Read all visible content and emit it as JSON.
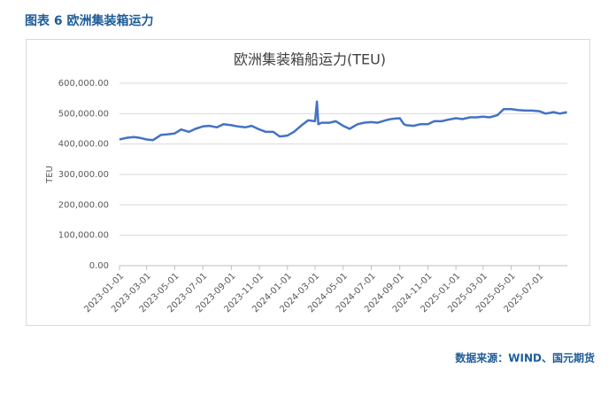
{
  "header": {
    "title": "图表 6 欧洲集装箱运力"
  },
  "source": "数据来源：WIND、国元期货",
  "chart_data": {
    "type": "line",
    "title": "欧洲集装箱船运力(TEU)",
    "y_label": "TEU",
    "x": [
      "2023-01-01",
      "2023-01-15",
      "2023-02-01",
      "2023-02-15",
      "2023-03-01",
      "2023-03-15",
      "2023-04-01",
      "2023-04-15",
      "2023-05-01",
      "2023-05-15",
      "2023-06-01",
      "2023-06-15",
      "2023-07-01",
      "2023-07-15",
      "2023-08-01",
      "2023-08-15",
      "2023-09-01",
      "2023-09-15",
      "2023-10-01",
      "2023-10-15",
      "2023-11-01",
      "2023-11-15",
      "2023-12-01",
      "2023-12-15",
      "2024-01-01",
      "2024-01-15",
      "2024-02-01",
      "2024-02-15",
      "2024-03-01",
      "2024-03-05",
      "2024-03-08",
      "2024-03-15",
      "2024-04-01",
      "2024-04-15",
      "2024-05-01",
      "2024-05-15",
      "2024-06-01",
      "2024-06-15",
      "2024-07-01",
      "2024-07-15",
      "2024-08-01",
      "2024-08-15",
      "2024-09-01",
      "2024-09-10",
      "2024-09-15",
      "2024-10-01",
      "2024-10-15",
      "2024-11-01",
      "2024-11-15",
      "2024-12-01",
      "2024-12-15",
      "2025-01-01",
      "2025-01-15",
      "2025-02-01",
      "2025-02-15",
      "2025-03-01",
      "2025-03-15",
      "2025-04-01",
      "2025-04-15",
      "2025-05-01",
      "2025-05-15",
      "2025-06-01",
      "2025-06-15",
      "2025-07-01",
      "2025-07-15",
      "2025-08-01",
      "2025-08-15",
      "2025-08-30"
    ],
    "series": [
      {
        "name": "欧洲集装箱船运力",
        "color": "#4472c4",
        "values": [
          415000,
          420000,
          423000,
          420000,
          415000,
          413000,
          430000,
          432000,
          435000,
          448000,
          440000,
          450000,
          458000,
          460000,
          455000,
          465000,
          462000,
          458000,
          455000,
          460000,
          448000,
          440000,
          440000,
          425000,
          428000,
          440000,
          462000,
          478000,
          475000,
          540000,
          465000,
          470000,
          470000,
          475000,
          460000,
          450000,
          465000,
          470000,
          472000,
          470000,
          478000,
          483000,
          485000,
          465000,
          462000,
          460000,
          465000,
          465000,
          475000,
          475000,
          480000,
          485000,
          482000,
          488000,
          488000,
          490000,
          488000,
          495000,
          515000,
          515000,
          512000,
          510000,
          510000,
          508000,
          500000,
          505000,
          500000,
          505000
        ]
      }
    ],
    "xlim": [
      "2023-01-01",
      "2025-08-31"
    ],
    "xticks": [
      "2023-01-01",
      "2023-03-01",
      "2023-05-01",
      "2023-07-01",
      "2023-09-01",
      "2023-11-01",
      "2024-01-01",
      "2024-03-01",
      "2024-05-01",
      "2024-07-01",
      "2024-09-01",
      "2024-11-01",
      "2025-01-01",
      "2025-03-01",
      "2025-05-01",
      "2025-07-01"
    ],
    "ylim": [
      0,
      600000
    ],
    "yticks": [
      {
        "value": 0,
        "label": "0.00"
      },
      {
        "value": 100000,
        "label": "100,000.00"
      },
      {
        "value": 200000,
        "label": "200,000.00"
      },
      {
        "value": 300000,
        "label": "300,000.00"
      },
      {
        "value": 400000,
        "label": "400,000.00"
      },
      {
        "value": 500000,
        "label": "500,000.00"
      },
      {
        "value": 600000,
        "label": "600,000.00"
      }
    ],
    "grid": true
  }
}
